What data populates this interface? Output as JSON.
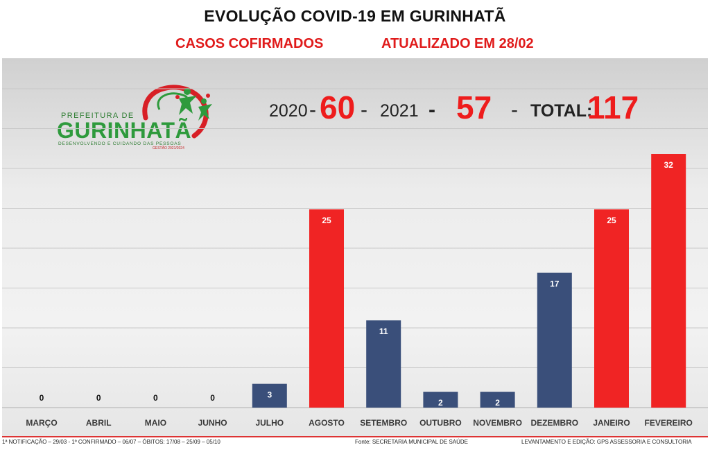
{
  "header": {
    "title": "EVOLUÇÃO COVID-19 EM GURINHATÃ",
    "subtitle_left": "CASOS COFIRMADOS",
    "subtitle_right": "ATUALIZADO EM 28/02"
  },
  "logo": {
    "prefix": "PREFEITURA DE",
    "name": "GURINHATÃ",
    "tagline": "DESENVOLVENDO E CUIDANDO DAS PESSOAS",
    "gestao": "GESTÃO 2021/2024"
  },
  "summary": {
    "year1": "2020",
    "value1": "60",
    "year2": "2021",
    "value2": "57",
    "total_label": "TOTAL:",
    "total_value": "117"
  },
  "colors": {
    "navy": "#3a4f7a",
    "red": "#f02424",
    "accent_red": "#ee1c1c",
    "green": "#2e9a3c"
  },
  "chart_data": {
    "type": "bar",
    "title": "",
    "xlabel": "",
    "ylabel": "",
    "categories": [
      "MARÇO",
      "ABRIL",
      "MAIO",
      "JUNHO",
      "JULHO",
      "AGOSTO",
      "SETEMBRO",
      "OUTUBRO",
      "NOVEMBRO",
      "DEZEMBRO",
      "JANEIRO",
      "FEVEREIRO"
    ],
    "values": [
      0,
      0,
      0,
      0,
      3,
      25,
      11,
      2,
      2,
      17,
      25,
      32
    ],
    "data_labels": [
      "0",
      "0",
      "0",
      "0",
      "3",
      "25",
      "11",
      "2",
      "2",
      "17",
      "25",
      "32"
    ],
    "bar_colors": [
      "navy",
      "navy",
      "navy",
      "navy",
      "navy",
      "red",
      "navy",
      "navy",
      "navy",
      "navy",
      "red",
      "red"
    ],
    "ylim": [
      0,
      32
    ],
    "grid": true,
    "legend": "none"
  },
  "footer": {
    "notes": "1ª NOTIFICAÇÃO – 29/03 - 1º CONFIRMADO – 06/07 – ÓBITOS: 17/08 – 25/09 – 05/10",
    "source": "Fonte: SECRETARIA MUNICIPAL DE SAÚDE",
    "credits": "LEVANTAMENTO E EDIÇÃO: GPS ASSESSORIA E CONSULTORIA"
  }
}
